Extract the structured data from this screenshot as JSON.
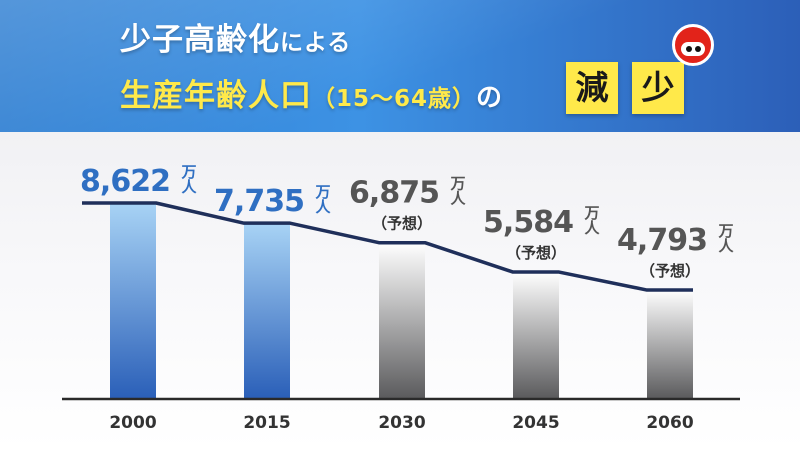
{
  "title": {
    "line1_main": "少子高齢化",
    "line1_small": "による",
    "line2_main": "生産年齢人口",
    "line2_paren": "（15〜64歳）",
    "line2_no": "の",
    "highlight1": "減",
    "highlight2": "少"
  },
  "colors": {
    "header_blue": "#3d92e4",
    "title_yellow": "#ffe94a",
    "actual_bar_top": "#a8d3f5",
    "actual_bar_bottom": "#2a5fb8",
    "actual_label": "#2f6fc2",
    "forecast_bar_top": "#ffffff",
    "forecast_bar_bottom": "#5a5a5c",
    "forecast_label": "#555555"
  },
  "chart_data": {
    "type": "bar",
    "title": "少子高齢化による生産年齢人口（15〜64歳）の減少",
    "categories": [
      "2000",
      "2015",
      "2030",
      "2045",
      "2060"
    ],
    "values": [
      8622,
      7735,
      6875,
      5584,
      4793
    ],
    "value_labels": [
      "8,622",
      "7,735",
      "6,875",
      "5,584",
      "4,793"
    ],
    "unit": "万人",
    "unit_top": "万",
    "unit_bottom": "人",
    "forecast": [
      false,
      false,
      true,
      true,
      true
    ],
    "forecast_note": "（予想）",
    "trend_line": true,
    "grid": false,
    "xlabel": "",
    "ylabel": ""
  }
}
